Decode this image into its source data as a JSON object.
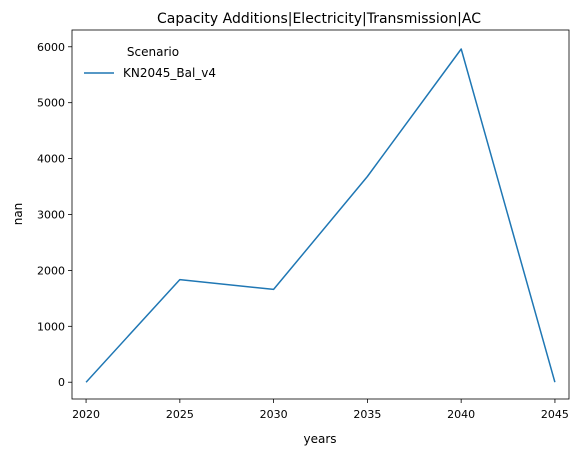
{
  "chart_data": {
    "type": "line",
    "title": "Capacity Additions|Electricity|Transmission|AC",
    "xlabel": "years",
    "ylabel": "nan",
    "x": [
      2020,
      2025,
      2030,
      2035,
      2040,
      2045
    ],
    "xticks": [
      "2020",
      "2025",
      "2030",
      "2035",
      "2040",
      "2045"
    ],
    "yticks": [
      "0",
      "1000",
      "2000",
      "3000",
      "4000",
      "5000",
      "6000"
    ],
    "xlim": [
      2019.25,
      2045.75
    ],
    "ylim": [
      -300,
      6300
    ],
    "grid": false,
    "legend": {
      "title": "Scenario",
      "placement": "upper-left"
    },
    "series": [
      {
        "name": "KN2045_Bal_v4",
        "color": "#1f77b4",
        "values": [
          0,
          1835,
          1660,
          3680,
          5960,
          0
        ]
      }
    ]
  }
}
